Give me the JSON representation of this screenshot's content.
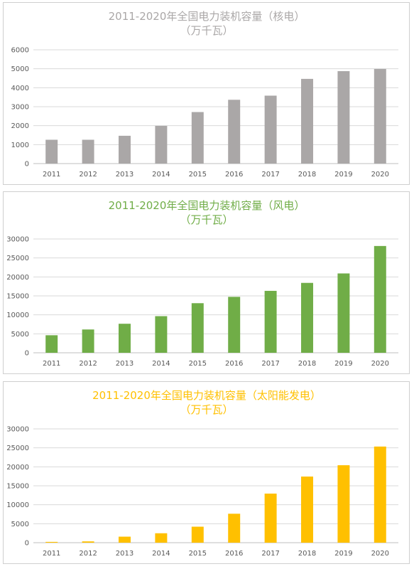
{
  "chart_data": [
    {
      "type": "bar",
      "title": "2011-2020年全国电力装机容量（核电）",
      "subtitle": "（万千瓦）",
      "color": "#aaa7a7",
      "categories": [
        "2011",
        "2012",
        "2013",
        "2014",
        "2015",
        "2016",
        "2017",
        "2018",
        "2019",
        "2020"
      ],
      "values": [
        1257,
        1257,
        1466,
        1988,
        2717,
        3364,
        3582,
        4466,
        4874,
        4989
      ],
      "ylim": [
        0,
        6000
      ],
      "yticks": [
        "0",
        "1000",
        "2000",
        "3000",
        "4000",
        "5000",
        "6000"
      ],
      "grid": true,
      "legend": "none"
    },
    {
      "type": "bar",
      "title": "2011-2020年全国电力装机容量（风电）",
      "subtitle": "（万千瓦）",
      "color": "#70ad47",
      "categories": [
        "2011",
        "2012",
        "2013",
        "2014",
        "2015",
        "2016",
        "2017",
        "2018",
        "2019",
        "2020"
      ],
      "values": [
        4623,
        6142,
        7652,
        9657,
        13075,
        14747,
        16325,
        18426,
        20915,
        28153
      ],
      "ylim": [
        0,
        30000
      ],
      "yticks": [
        "0",
        "5000",
        "10000",
        "15000",
        "20000",
        "25000",
        "30000"
      ],
      "grid": true,
      "legend": "none"
    },
    {
      "type": "bar",
      "title": "2011-2020年全国电力装机容量（太阳能发电）",
      "subtitle": "（万千瓦）",
      "color": "#ffc000",
      "categories": [
        "2011",
        "2012",
        "2013",
        "2014",
        "2015",
        "2016",
        "2017",
        "2018",
        "2019",
        "2020"
      ],
      "values": [
        212,
        341,
        1589,
        2486,
        4218,
        7631,
        12942,
        17433,
        20418,
        25343
      ],
      "ylim": [
        0,
        30000
      ],
      "yticks": [
        "0",
        "5000",
        "10000",
        "15000",
        "20000",
        "25000",
        "30000"
      ],
      "grid": true,
      "legend": "none"
    }
  ]
}
